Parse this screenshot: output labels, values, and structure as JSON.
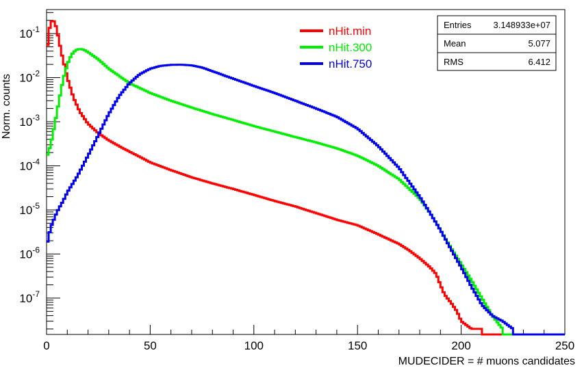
{
  "chart_data": {
    "type": "line",
    "title": "",
    "xlabel": "MUDECIDER = # muons candidates",
    "ylabel": "Norm. counts",
    "xlim": [
      0,
      250
    ],
    "ylim": [
      1.5e-08,
      0.35
    ],
    "yscale": "log",
    "x_ticks": [
      0,
      50,
      100,
      150,
      200,
      250
    ],
    "y_tick_labels": [
      {
        "value": 1e-07,
        "base": "10",
        "exp": "-7"
      },
      {
        "value": 1e-06,
        "base": "10",
        "exp": "-6"
      },
      {
        "value": 1e-05,
        "base": "10",
        "exp": "-5"
      },
      {
        "value": 0.0001,
        "base": "10",
        "exp": "-4"
      },
      {
        "value": 0.001,
        "base": "10",
        "exp": "-3"
      },
      {
        "value": 0.01,
        "base": "10",
        "exp": "-2"
      },
      {
        "value": 0.1,
        "base": "10",
        "exp": "-1"
      }
    ],
    "grid": false,
    "legend": "top-center",
    "series": [
      {
        "name": "nHit.min",
        "color": "#ff0000",
        "x": [
          0,
          1,
          2,
          3,
          4,
          5,
          7,
          10,
          13,
          16,
          20,
          25,
          30,
          35,
          40,
          45,
          50,
          60,
          70,
          80,
          90,
          100,
          110,
          120,
          130,
          140,
          150,
          160,
          170,
          175,
          180,
          185,
          188,
          190,
          192,
          195,
          198,
          200,
          205,
          210
        ],
        "values": [
          0.03,
          0.1,
          0.18,
          0.2,
          0.18,
          0.12,
          0.04,
          0.01,
          0.0035,
          0.0017,
          0.0009,
          0.00055,
          0.00038,
          0.00028,
          0.00021,
          0.00016,
          0.00012,
          8e-05,
          5.5e-05,
          4e-05,
          3e-05,
          2.2e-05,
          1.6e-05,
          1.2e-05,
          8.5e-06,
          6e-06,
          4.5e-06,
          2.8e-06,
          1.7e-06,
          1.2e-06,
          8e-07,
          5e-07,
          3.5e-07,
          2e-07,
          1.2e-07,
          8e-08,
          5e-08,
          3e-08,
          2e-08,
          2e-08
        ]
      },
      {
        "name": "nHit.300",
        "color": "#00ee00",
        "x": [
          0,
          2,
          4,
          6,
          8,
          10,
          12,
          14,
          16,
          18,
          20,
          25,
          30,
          40,
          50,
          60,
          70,
          80,
          90,
          100,
          110,
          120,
          130,
          140,
          150,
          160,
          170,
          180,
          185,
          190,
          195,
          200,
          205,
          210,
          215,
          220
        ],
        "values": [
          0.00015,
          0.0003,
          0.0009,
          0.003,
          0.009,
          0.02,
          0.033,
          0.042,
          0.045,
          0.043,
          0.038,
          0.026,
          0.016,
          0.0075,
          0.0045,
          0.003,
          0.0021,
          0.0015,
          0.0011,
          0.0008,
          0.0006,
          0.00045,
          0.00034,
          0.00025,
          0.00017,
          0.0001,
          5e-05,
          1.8e-05,
          8.5e-06,
          3.5e-06,
          1.4e-06,
          6e-07,
          2.5e-07,
          1e-07,
          4e-08,
          2e-08
        ]
      },
      {
        "name": "nHit.750",
        "color": "#0000ee",
        "x": [
          0,
          2,
          5,
          8,
          10,
          15,
          20,
          25,
          30,
          35,
          40,
          45,
          50,
          55,
          60,
          65,
          70,
          75,
          80,
          90,
          100,
          110,
          120,
          130,
          140,
          150,
          160,
          170,
          180,
          185,
          190,
          195,
          200,
          205,
          210,
          215,
          220,
          225
        ],
        "values": [
          1.5e-06,
          4e-06,
          9e-06,
          1.6e-05,
          2.5e-05,
          6e-05,
          0.00017,
          0.0005,
          0.0015,
          0.0038,
          0.0075,
          0.012,
          0.016,
          0.0185,
          0.0195,
          0.0197,
          0.019,
          0.017,
          0.014,
          0.0095,
          0.0065,
          0.0045,
          0.003,
          0.002,
          0.0013,
          0.0007,
          0.00028,
          9e-05,
          2e-05,
          8.5e-06,
          3.5e-06,
          1.3e-06,
          5e-07,
          1.8e-07,
          7e-08,
          4e-08,
          3e-08,
          2e-08
        ]
      }
    ],
    "stats": {
      "entries_label": "Entries",
      "entries_value": "3.148933e+07",
      "mean_label": "Mean",
      "mean_value": "5.077",
      "rms_label": "RMS",
      "rms_value": "6.412"
    }
  }
}
